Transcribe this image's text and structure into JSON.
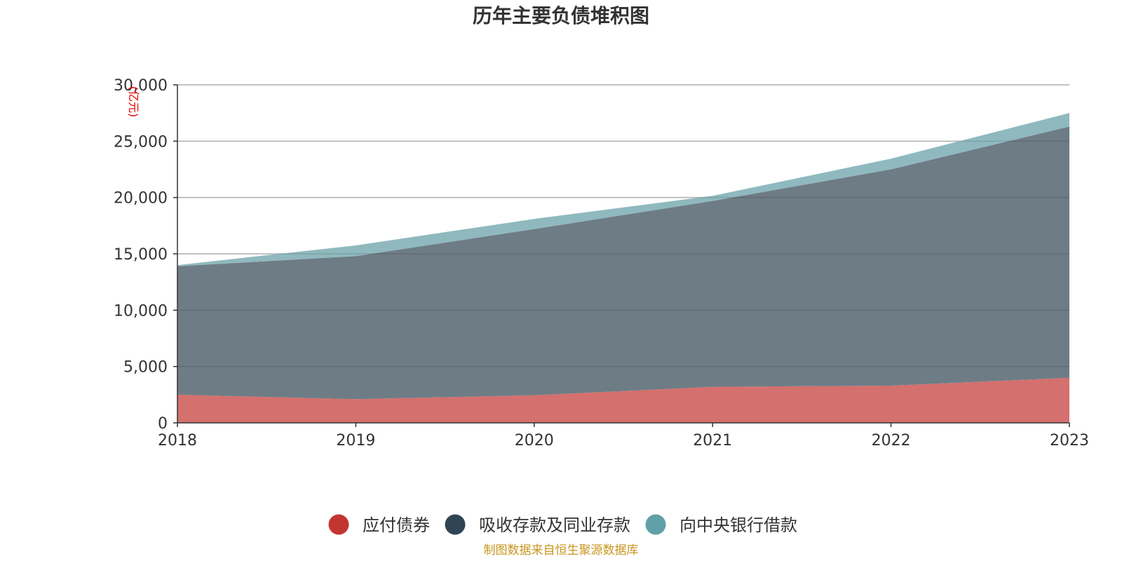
{
  "chart_data": {
    "type": "area",
    "stacked": true,
    "title": "历年主要负债堆积图",
    "unit_label": "(亿元)",
    "x": [
      "2018",
      "2019",
      "2020",
      "2021",
      "2022",
      "2023"
    ],
    "ylim": [
      0,
      30000
    ],
    "y_ticks": [
      0,
      5000,
      10000,
      15000,
      20000,
      25000,
      30000
    ],
    "y_tick_labels": [
      "0",
      "5,000",
      "10,000",
      "15,000",
      "20,000",
      "25,000",
      "30,000"
    ],
    "grid": true,
    "legend_position": "bottom-center",
    "series": [
      {
        "name": "应付债券",
        "values": [
          2500,
          2100,
          2450,
          3200,
          3300,
          4000
        ],
        "color": "#c23531",
        "fill": "#d4706d"
      },
      {
        "name": "吸收存款及同业存款",
        "values": [
          11400,
          12700,
          14750,
          16500,
          19200,
          22300
        ],
        "color": "#2f4554",
        "fill": "#6e7c86"
      },
      {
        "name": "向中央银行借款",
        "values": [
          100,
          950,
          900,
          450,
          950,
          1200
        ],
        "color": "#61a0a8",
        "fill": "#8fb9be"
      }
    ],
    "source": "制图数据来自恒生聚源数据库"
  }
}
